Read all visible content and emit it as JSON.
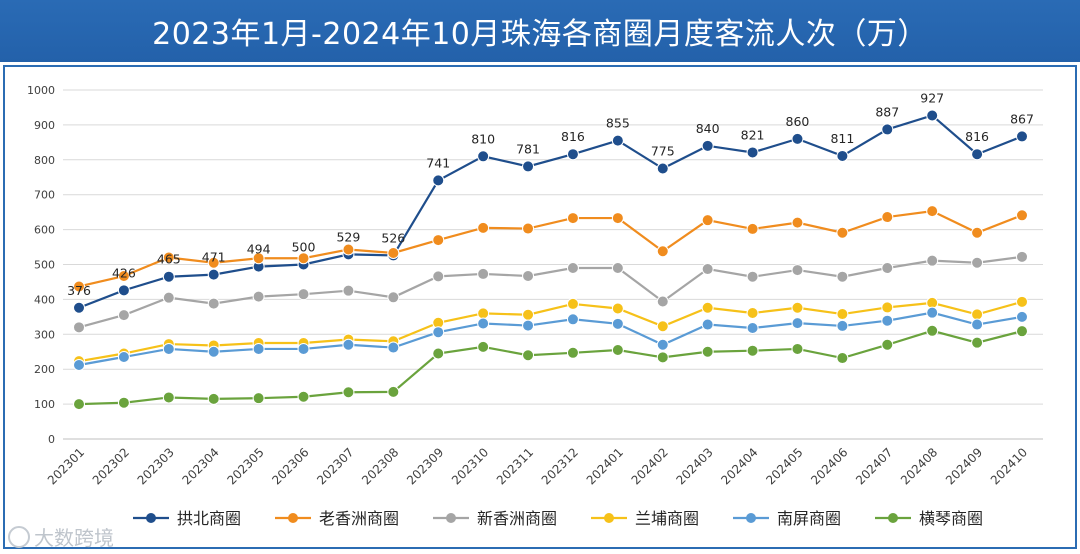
{
  "chart_data": {
    "type": "line",
    "title": "2023年1月-2024年10月珠海各商圈月度客流人次（万）",
    "xlabel": "",
    "ylabel": "",
    "ylim": [
      0,
      1000
    ],
    "yticks": [
      0,
      100,
      200,
      300,
      400,
      500,
      600,
      700,
      800,
      900,
      1000
    ],
    "grid": true,
    "legend_position": "bottom",
    "categories": [
      "202301",
      "202302",
      "202303",
      "202304",
      "202305",
      "202306",
      "202307",
      "202308",
      "202309",
      "202310",
      "202311",
      "202312",
      "202401",
      "202402",
      "202403",
      "202404",
      "202405",
      "202406",
      "202407",
      "202408",
      "202409",
      "202410"
    ],
    "series": [
      {
        "name": "拱北商圈",
        "color": "#1f4e8c",
        "labeled": true,
        "values": [
          376,
          426,
          465,
          471,
          494,
          500,
          529,
          526,
          741,
          810,
          781,
          816,
          855,
          775,
          840,
          821,
          860,
          811,
          887,
          927,
          816,
          867
        ]
      },
      {
        "name": "老香洲商圈",
        "color": "#f08c1e",
        "labeled": false,
        "values": [
          437,
          467,
          520,
          505,
          518,
          518,
          543,
          533,
          570,
          605,
          603,
          633,
          633,
          538,
          627,
          602,
          620,
          591,
          636,
          653,
          591,
          641
        ]
      },
      {
        "name": "新香洲商圈",
        "color": "#a5a5a5",
        "labeled": false,
        "values": [
          320,
          355,
          405,
          388,
          408,
          415,
          425,
          406,
          466,
          473,
          467,
          490,
          490,
          394,
          487,
          465,
          484,
          465,
          490,
          511,
          505,
          522
        ]
      },
      {
        "name": "兰埔商圈",
        "color": "#f6c119",
        "labeled": false,
        "values": [
          223,
          245,
          272,
          268,
          275,
          275,
          285,
          280,
          333,
          360,
          356,
          387,
          374,
          323,
          376,
          361,
          376,
          358,
          377,
          390,
          357,
          393
        ]
      },
      {
        "name": "南屏商圈",
        "color": "#5a9bd5",
        "labeled": false,
        "values": [
          212,
          235,
          258,
          250,
          258,
          258,
          270,
          262,
          306,
          331,
          325,
          343,
          330,
          270,
          328,
          318,
          332,
          324,
          339,
          362,
          328,
          350
        ]
      },
      {
        "name": "横琴商圈",
        "color": "#6aa33d",
        "labeled": false,
        "values": [
          100,
          104,
          119,
          115,
          117,
          121,
          134,
          135,
          245,
          264,
          240,
          247,
          255,
          234,
          250,
          253,
          258,
          232,
          270,
          310,
          276,
          309
        ]
      }
    ]
  },
  "watermark": {
    "text": "大数跨境"
  }
}
